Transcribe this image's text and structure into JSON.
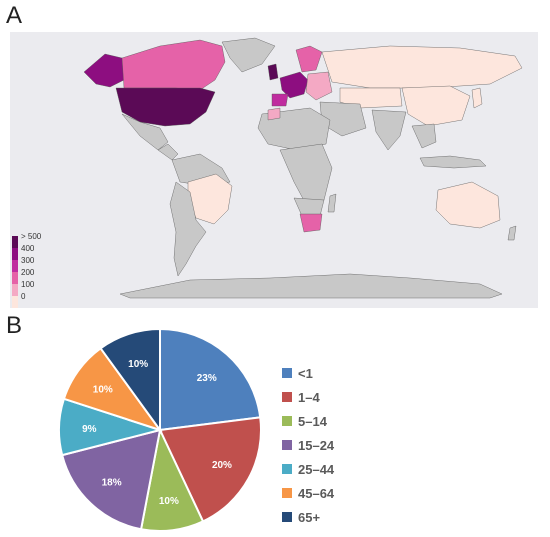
{
  "panels": {
    "a": "A",
    "b": "B"
  },
  "chart_data": [
    {
      "type": "choropleth-map",
      "color_scale": {
        "labels": [
          "> 500",
          "400",
          "300",
          "200",
          "100",
          "0"
        ],
        "colors": [
          "#5b0a56",
          "#8d0e80",
          "#c02c9f",
          "#e562a8",
          "#f4a9c4",
          "#fde6dd"
        ]
      },
      "land_color": "#c8c8c8",
      "ocean_color": "#ebebef"
    },
    {
      "type": "pie",
      "categories": [
        "<1",
        "1–4",
        "5–14",
        "15–24",
        "25–44",
        "45–64",
        "65+"
      ],
      "values": [
        23,
        20,
        10,
        18,
        9,
        10,
        10
      ],
      "labels": [
        "23%",
        "20%",
        "10%",
        "18%",
        "9%",
        "10%",
        "10%"
      ],
      "colors": [
        "#4e80bd",
        "#c0504d",
        "#9bbb59",
        "#8064a2",
        "#4bacc6",
        "#f79646",
        "#254a78"
      ],
      "legend_position": "right"
    }
  ]
}
